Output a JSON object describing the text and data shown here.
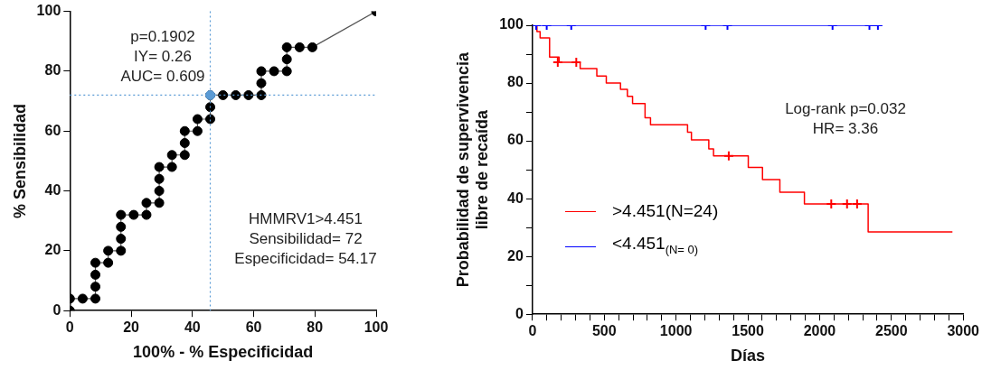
{
  "chart_data": [
    {
      "type": "line",
      "xlabel": "100% - % Especificidad",
      "ylabel": "% Sensibilidad",
      "xlim": [
        0,
        100
      ],
      "ylim": [
        0,
        100
      ],
      "xticks": [
        0,
        20,
        40,
        60,
        80,
        100
      ],
      "yticks": [
        0,
        20,
        40,
        60,
        80,
        100
      ],
      "grid": false,
      "legend": false,
      "series": [
        {
          "color": "#000000",
          "marker": "circle",
          "x": [
            0,
            0,
            4.17,
            8.33,
            8.33,
            8.33,
            8.33,
            12.5,
            12.5,
            16.67,
            16.67,
            16.67,
            16.67,
            20.83,
            25,
            25,
            29.17,
            29.17,
            29.17,
            29.17,
            33.33,
            33.33,
            37.5,
            37.5,
            37.5,
            41.67,
            41.67,
            45.83,
            45.83,
            45.83,
            50,
            54.17,
            58.33,
            62.5,
            62.5,
            62.5,
            66.67,
            70.83,
            70.83,
            70.83,
            75,
            79.17,
            100
          ],
          "values": [
            0,
            4,
            4,
            4,
            8,
            12,
            16,
            16,
            20,
            20,
            24,
            28,
            32,
            32,
            32,
            36,
            36,
            40,
            44,
            48,
            48,
            52,
            52,
            56,
            60,
            60,
            64,
            64,
            68,
            72,
            72,
            72,
            72,
            72,
            76,
            80,
            80,
            80,
            84,
            88,
            88,
            88,
            100
          ]
        },
        {
          "type": "scatter",
          "color": "#5b9bd5",
          "marker": "circle",
          "x": [
            45.83
          ],
          "values": [
            72
          ]
        }
      ],
      "ref_lines": [
        {
          "axis": "x",
          "value": 45.83,
          "color": "#5b9bd5",
          "line_style": "dotted"
        },
        {
          "axis": "y",
          "value": 72,
          "color": "#5b9bd5",
          "line_style": "dotted"
        }
      ],
      "annotations": [
        "p=0.1902\nIY= 0.26\nAUC= 0.609",
        "HMMRV1>4.451\nSensibilidad= 72\nEspecificidad= 54.17"
      ]
    },
    {
      "type": "step",
      "xlabel": "Días",
      "ylabel": "Probabilidad de supervivencia\nlibre de recaída",
      "xlim": [
        0,
        3000
      ],
      "ylim": [
        0,
        100
      ],
      "xticks": [
        0,
        {
          "value": 100,
          "label": null
        },
        {
          "value": 200,
          "label": null
        },
        {
          "value": 300,
          "label": null
        },
        {
          "value": 400,
          "label": null
        },
        500,
        {
          "value": 600,
          "label": null
        },
        {
          "value": 700,
          "label": null
        },
        {
          "value": 800,
          "label": null
        },
        {
          "value": 900,
          "label": null
        },
        1000,
        {
          "value": 1100,
          "label": null
        },
        {
          "value": 1200,
          "label": null
        },
        {
          "value": 1300,
          "label": null
        },
        {
          "value": 1400,
          "label": null
        },
        1500,
        {
          "value": 1600,
          "label": null
        },
        {
          "value": 1700,
          "label": null
        },
        {
          "value": 1800,
          "label": null
        },
        {
          "value": 1900,
          "label": null
        },
        2000,
        {
          "value": 2100,
          "label": null
        },
        {
          "value": 2200,
          "label": null
        },
        {
          "value": 2300,
          "label": null
        },
        {
          "value": 2400,
          "label": null
        },
        2500,
        {
          "value": 2600,
          "label": null
        },
        {
          "value": 2700,
          "label": null
        },
        {
          "value": 2800,
          "label": null
        },
        {
          "value": 2900,
          "label": null
        },
        3000
      ],
      "yticks": [
        0,
        {
          "value": 10,
          "label": null
        },
        20,
        {
          "value": 30,
          "label": null
        },
        40,
        {
          "value": 50,
          "label": null
        },
        60,
        {
          "value": 70,
          "label": null
        },
        80,
        {
          "value": 90,
          "label": null
        },
        100
      ],
      "grid": false,
      "legend": "bottom left",
      "series": [
        {
          "name": ">4.451(N=24)",
          "color": "#ff0000",
          "marker": "none",
          "x": [
            0,
            31,
            53,
            119,
            185,
            332,
            448,
            514,
            613,
            661,
            697,
            784,
            822,
            1080,
            1107,
            1228,
            1261,
            1503,
            1602,
            1723,
            1894,
            2338,
            2925
          ],
          "values": [
            100,
            97.8,
            95.6,
            89,
            87.2,
            85,
            82.4,
            80,
            77.8,
            75.4,
            72.9,
            68,
            65.6,
            63,
            60.3,
            57.2,
            54.8,
            50.8,
            46.6,
            42.2,
            38.2,
            28.5,
            28.5
          ]
        },
        {
          "name": "<4.451$_{(N= 0)}$",
          "color": "#0000ff",
          "marker": "none",
          "x": [
            0,
            2406
          ],
          "values": [
            100,
            100
          ]
        },
        {
          "type": "scatter",
          "color": "#ff0000",
          "marker": "cross",
          "x": [
            176,
            305,
            1367,
            2081,
            2191,
            2261
          ],
          "values": [
            87.2,
            87.2,
            54.8,
            38.2,
            38.2,
            38.2
          ]
        },
        {
          "type": "scatter",
          "color": "#0000ff",
          "marker": "cross",
          "x": [
            26,
            99,
            270,
            1206,
            1358,
            2090,
            2347,
            2406
          ],
          "values": [
            100,
            100,
            100,
            100,
            100,
            100,
            100,
            100
          ]
        }
      ],
      "annotations": [
        "Log-rank p=0.032\nHR= 3.36"
      ]
    }
  ]
}
